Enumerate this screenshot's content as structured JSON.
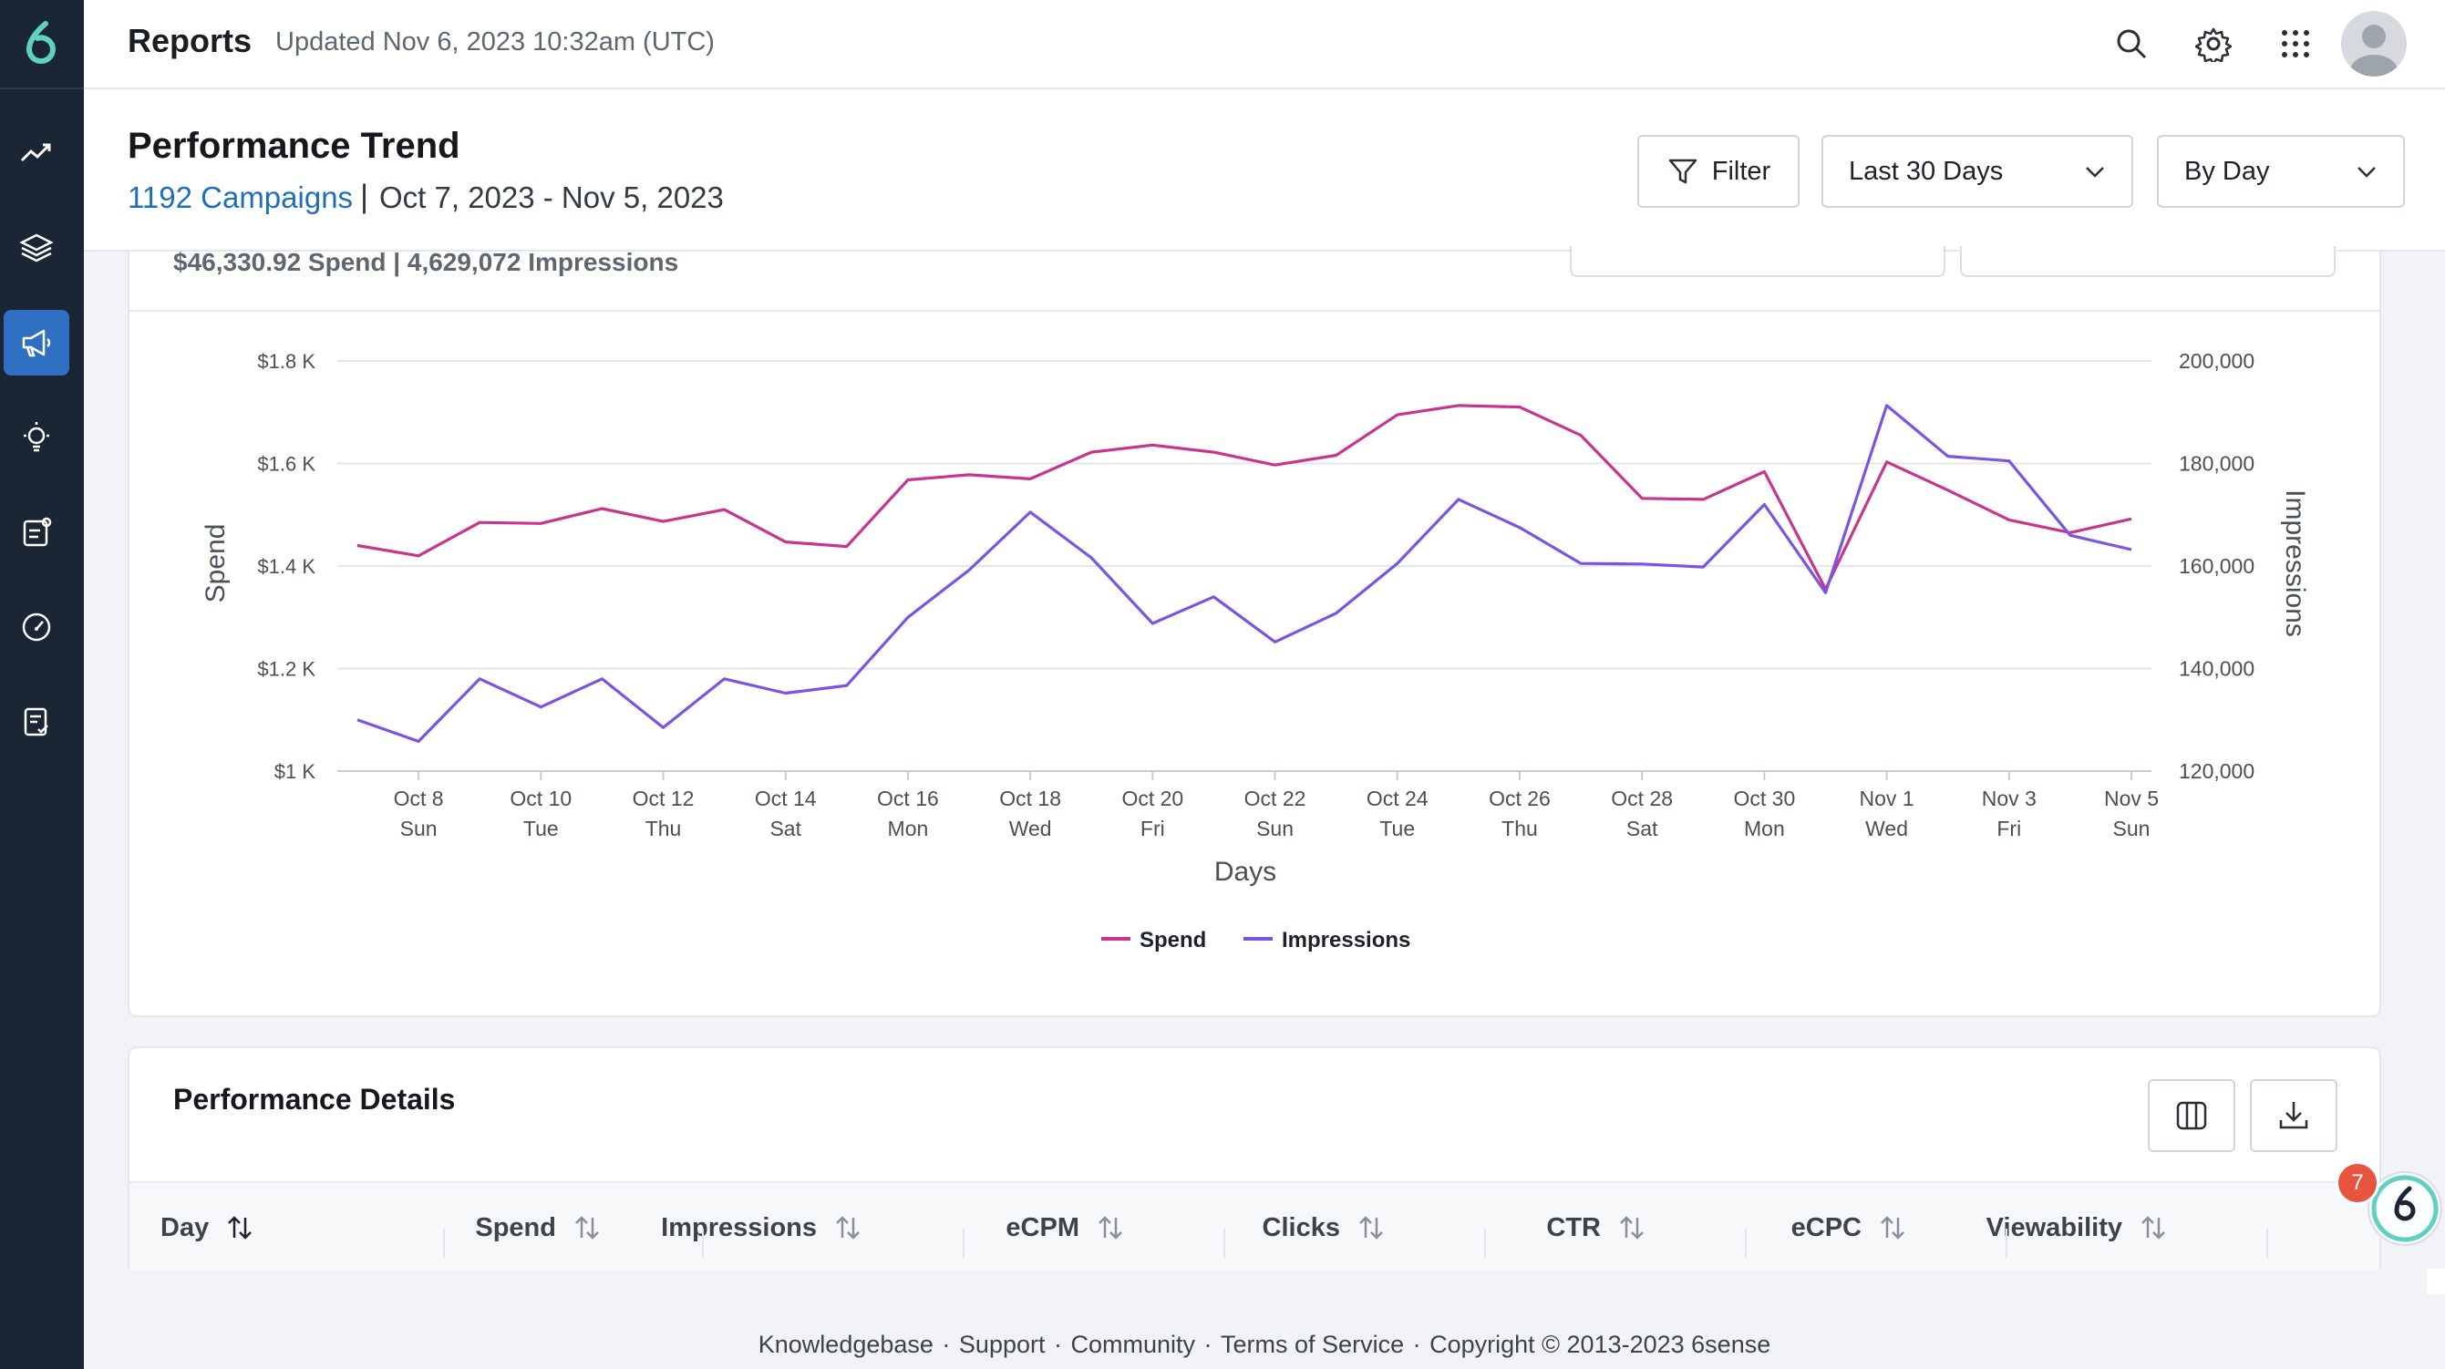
{
  "topbar": {
    "title": "Reports",
    "updated": "Updated Nov 6, 2023 10:32am (UTC)"
  },
  "sidebar": {
    "items": [
      {
        "icon": "trend-icon"
      },
      {
        "icon": "layers-icon"
      },
      {
        "icon": "megaphone-icon",
        "active": true
      },
      {
        "icon": "lightbulb-icon"
      },
      {
        "icon": "report-edit-icon"
      },
      {
        "icon": "gauge-icon"
      },
      {
        "icon": "checklist-icon"
      }
    ]
  },
  "header": {
    "title": "Performance Trend",
    "campaigns_link": "1192 Campaigns",
    "separator": "|",
    "date_range": "Oct 7, 2023 - Nov 5, 2023",
    "filter_label": "Filter",
    "period_select": "Last 30 Days",
    "granularity_select": "By Day"
  },
  "summary": "$46,330.92 Spend | 4,629,072 Impressions",
  "chart_data": {
    "type": "line",
    "x": [
      "Oct 7",
      "Oct 8",
      "Oct 9",
      "Oct 10",
      "Oct 11",
      "Oct 12",
      "Oct 13",
      "Oct 14",
      "Oct 15",
      "Oct 16",
      "Oct 17",
      "Oct 18",
      "Oct 19",
      "Oct 20",
      "Oct 21",
      "Oct 22",
      "Oct 23",
      "Oct 24",
      "Oct 25",
      "Oct 26",
      "Oct 27",
      "Oct 28",
      "Oct 29",
      "Oct 30",
      "Oct 31",
      "Nov 1",
      "Nov 2",
      "Nov 3",
      "Nov 4",
      "Nov 5"
    ],
    "x_tick_labels": [
      {
        "date": "Oct 8",
        "day": "Sun"
      },
      {
        "date": "Oct 10",
        "day": "Tue"
      },
      {
        "date": "Oct 12",
        "day": "Thu"
      },
      {
        "date": "Oct 14",
        "day": "Sat"
      },
      {
        "date": "Oct 16",
        "day": "Mon"
      },
      {
        "date": "Oct 18",
        "day": "Wed"
      },
      {
        "date": "Oct 20",
        "day": "Fri"
      },
      {
        "date": "Oct 22",
        "day": "Sun"
      },
      {
        "date": "Oct 24",
        "day": "Tue"
      },
      {
        "date": "Oct 26",
        "day": "Thu"
      },
      {
        "date": "Oct 28",
        "day": "Sat"
      },
      {
        "date": "Oct 30",
        "day": "Mon"
      },
      {
        "date": "Nov 1",
        "day": "Wed"
      },
      {
        "date": "Nov 3",
        "day": "Fri"
      },
      {
        "date": "Nov 5",
        "day": "Sun"
      }
    ],
    "series": [
      {
        "name": "Spend",
        "axis": "left",
        "color": "#c8358d",
        "values": [
          1440,
          1420,
          1485,
          1483,
          1512,
          1487,
          1510,
          1447,
          1438,
          1568,
          1578,
          1570,
          1622,
          1636,
          1622,
          1597,
          1616,
          1695,
          1713,
          1710,
          1655,
          1532,
          1530,
          1584,
          1355,
          1603,
          1548,
          1490,
          1465,
          1492
        ]
      },
      {
        "name": "Impressions",
        "axis": "right",
        "color": "#7a55e3",
        "values": [
          130000,
          125800,
          138000,
          132500,
          138000,
          128500,
          138000,
          135200,
          136700,
          150000,
          159200,
          170500,
          161600,
          148800,
          154000,
          145200,
          150800,
          160500,
          173000,
          167500,
          160500,
          160400,
          159800,
          172000,
          154800,
          191300,
          181400,
          180500,
          166000,
          163200
        ]
      }
    ],
    "y_left": {
      "label": "Spend",
      "ticks": [
        "$1 K",
        "$1.2 K",
        "$1.4 K",
        "$1.6 K",
        "$1.8 K"
      ],
      "min": 1000,
      "max": 1800
    },
    "y_right": {
      "label": "Impressions",
      "ticks": [
        "120,000",
        "140,000",
        "160,000",
        "180,000",
        "200,000"
      ],
      "min": 120000,
      "max": 200000
    },
    "xlabel": "Days",
    "legend": [
      "Spend",
      "Impressions"
    ],
    "legend_position": "bottom-center",
    "grid": true
  },
  "details": {
    "title": "Performance Details",
    "columns": [
      "Day",
      "Spend",
      "Impressions",
      "eCPM",
      "Clicks",
      "CTR",
      "eCPC",
      "Viewability"
    ]
  },
  "badge": {
    "count": "7"
  },
  "footer": {
    "links": [
      "Knowledgebase",
      "Support",
      "Community",
      "Terms of Service"
    ],
    "copyright": "Copyright © 2013-2023 6sense"
  }
}
